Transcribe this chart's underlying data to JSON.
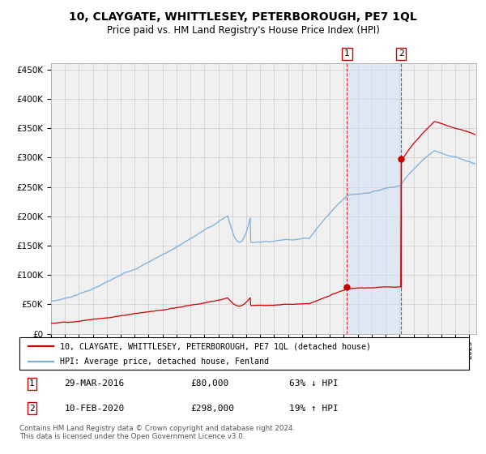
{
  "title": "10, CLAYGATE, WHITTLESEY, PETERBOROUGH, PE7 1QL",
  "subtitle": "Price paid vs. HM Land Registry's House Price Index (HPI)",
  "title_fontsize": 10,
  "subtitle_fontsize": 8.5,
  "ylim": [
    0,
    460000
  ],
  "xlim_start": 1995.0,
  "xlim_end": 2025.5,
  "hpi_color": "#7aaddb",
  "property_color": "#cc0000",
  "background_color": "#ffffff",
  "plot_bg_color": "#f0f0f0",
  "grid_color": "#cccccc",
  "sale1_date": 2016.23,
  "sale1_price": 80000,
  "sale2_date": 2020.11,
  "sale2_price": 298000,
  "shade_color": "#cce0f5",
  "legend_entry1": "10, CLAYGATE, WHITTLESEY, PETERBOROUGH, PE7 1QL (detached house)",
  "legend_entry2": "HPI: Average price, detached house, Fenland",
  "footer": "Contains HM Land Registry data © Crown copyright and database right 2024.\nThis data is licensed under the Open Government Licence v3.0.",
  "table_row1": [
    "1",
    "29-MAR-2016",
    "£80,000",
    "63% ↓ HPI"
  ],
  "table_row2": [
    "2",
    "10-FEB-2020",
    "£298,000",
    "19% ↑ HPI"
  ]
}
